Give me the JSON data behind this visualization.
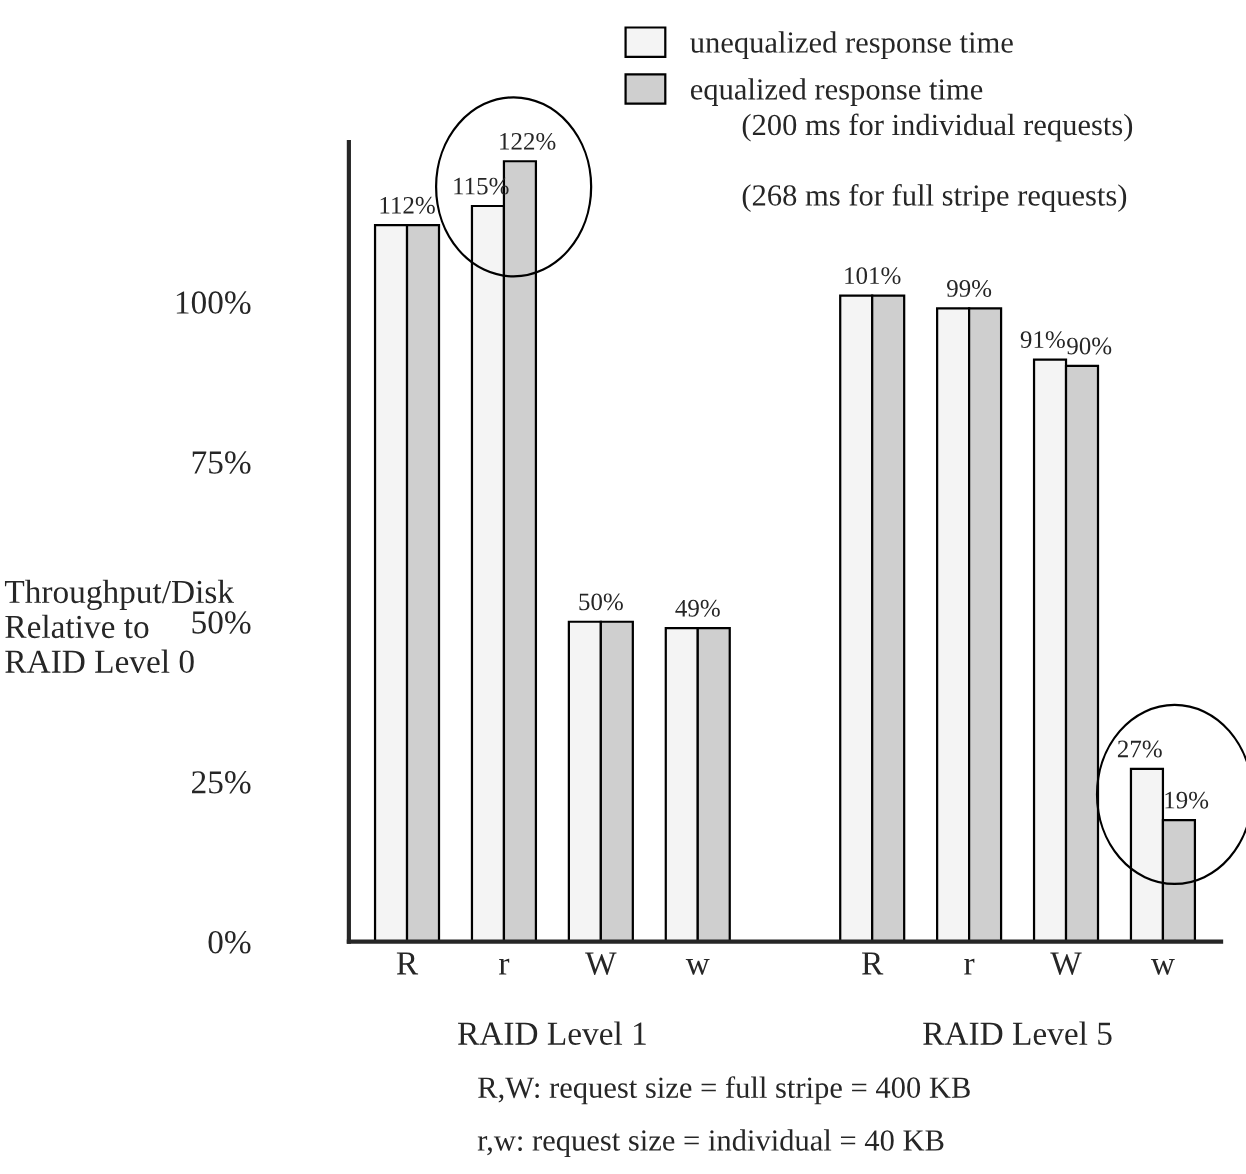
{
  "chart_data": {
    "type": "bar",
    "ylabel": "Throughput/Disk\nRelative to\nRAID Level 0",
    "categories": [
      "R",
      "r",
      "W",
      "w",
      "R",
      "r",
      "W",
      "w"
    ],
    "series": [
      {
        "name": "unequalized response time",
        "color": "#f4f4f4",
        "values": [
          112,
          115,
          50,
          49,
          101,
          99,
          91,
          27
        ],
        "value_labels": [
          "112%",
          "115%",
          "50%",
          "49%",
          "101%",
          "99%",
          "91%",
          "27%"
        ]
      },
      {
        "name": "equalized response time",
        "color": "#cfcfcf",
        "values": [
          112,
          122,
          50,
          49,
          101,
          99,
          90,
          19
        ],
        "value_labels": [
          null,
          "122%",
          null,
          null,
          null,
          null,
          "90%",
          "19%"
        ]
      }
    ],
    "ylim": [
      0,
      125
    ],
    "yticks": [
      {
        "value": 0,
        "label": "0%"
      },
      {
        "value": 25,
        "label": "25%"
      },
      {
        "value": 50,
        "label": "50%"
      },
      {
        "value": 75,
        "label": "75%"
      },
      {
        "value": 100,
        "label": "100%"
      }
    ],
    "legend": "top right",
    "grid": false,
    "annotations": [
      "(200 ms for individual requests)",
      "(268 ms for full stripe requests)",
      "RAID Level 1",
      "RAID Level 5",
      "R,W: request size = full stripe = 400 KB",
      "r,w: request size = individual = 40 KB"
    ]
  }
}
